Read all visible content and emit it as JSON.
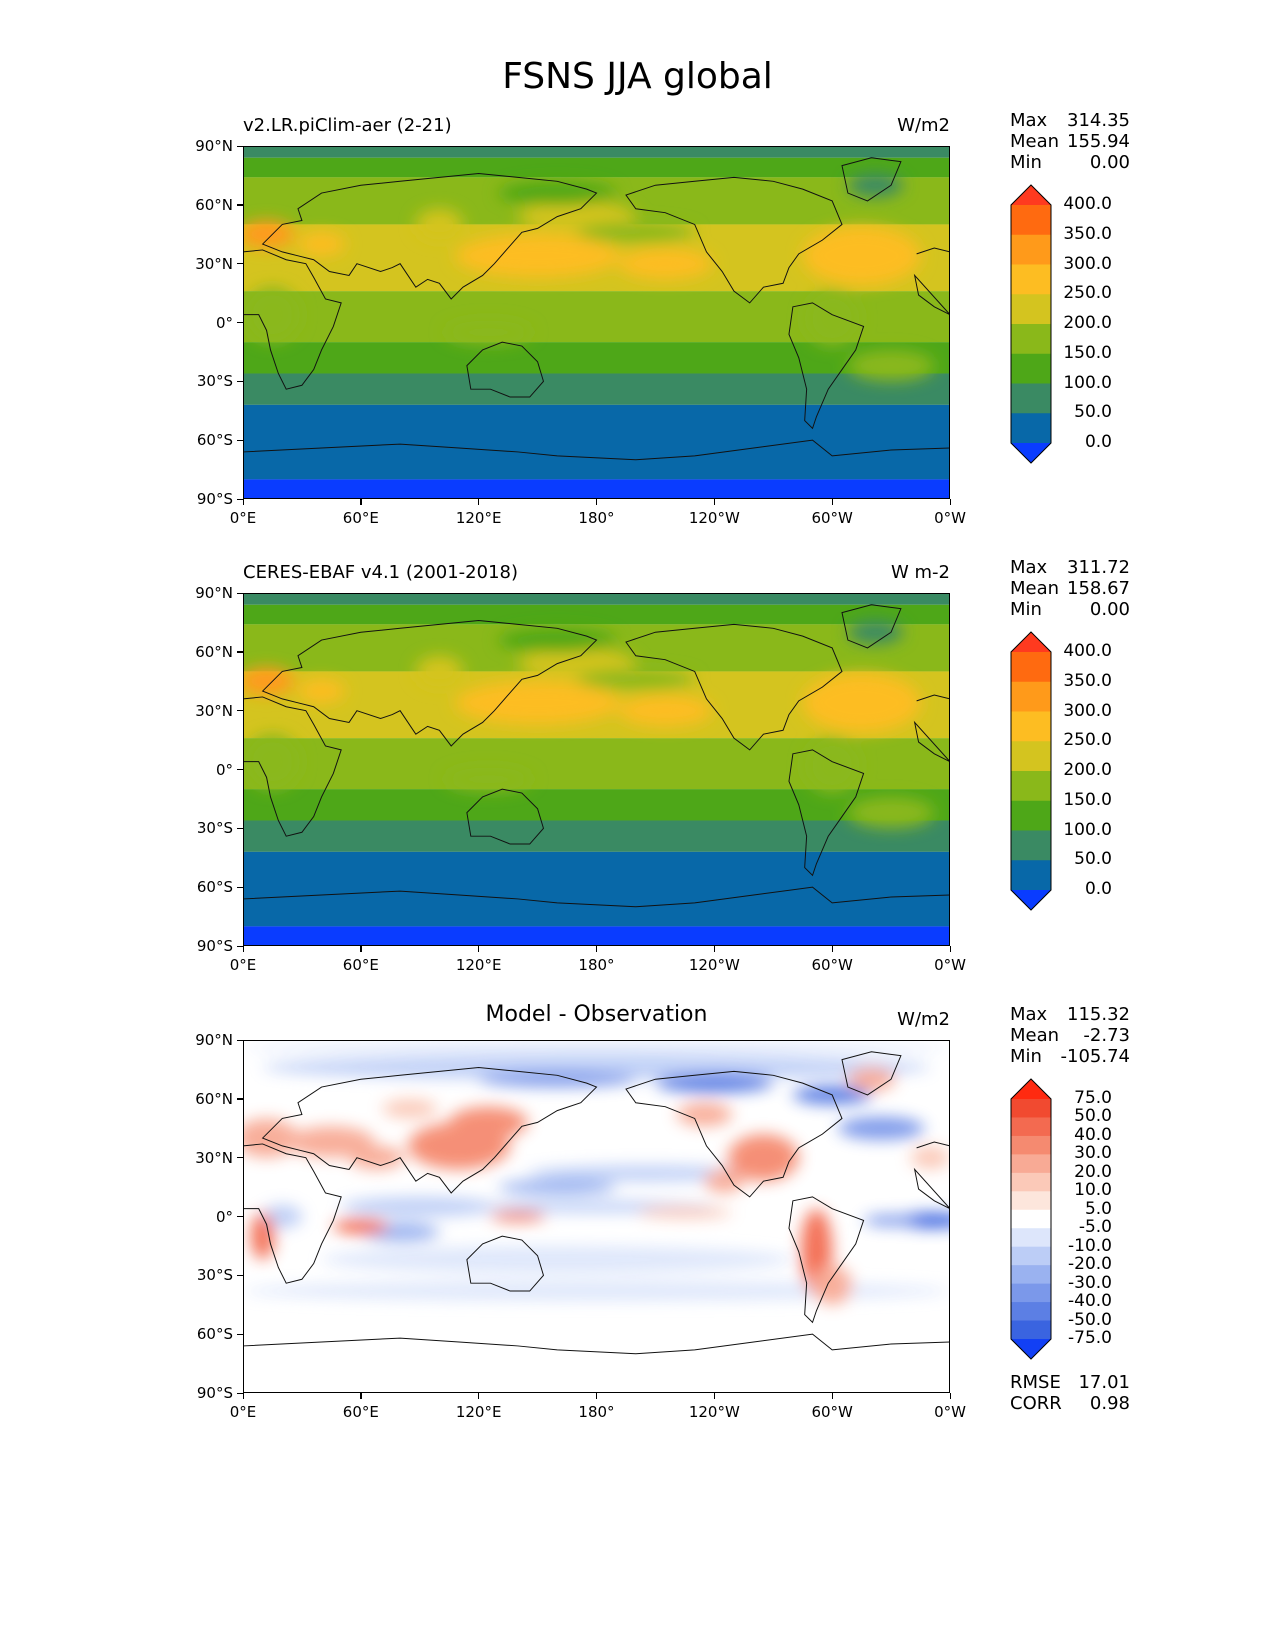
{
  "figure": {
    "title": "FSNS JJA global"
  },
  "axes": {
    "lat_ticks": [
      "90°N",
      "60°N",
      "30°N",
      "0°",
      "30°S",
      "60°S",
      "90°S"
    ],
    "lon_ticks": [
      "0°E",
      "60°E",
      "120°E",
      "180°",
      "120°W",
      "60°W",
      "0°W"
    ]
  },
  "panels": [
    {
      "id": "model",
      "subtitle": "v2.LR.piClim-aer (2-21)",
      "units": "W/m2",
      "stats": {
        "Max": "314.35",
        "Mean": "155.94",
        "Min": "0.00"
      },
      "colorbar": {
        "labels": [
          "400.0",
          "350.0",
          "300.0",
          "250.0",
          "200.0",
          "150.0",
          "100.0",
          "50.0",
          "0.0"
        ],
        "colors": [
          "#ff3a1f",
          "#ff6a10",
          "#ff9a1a",
          "#fdbd22",
          "#d4c41f",
          "#8ab81a",
          "#4ea718",
          "#3a8a63",
          "#0868a8",
          "#0a3cff"
        ]
      }
    },
    {
      "id": "obs",
      "subtitle": "CERES-EBAF v4.1 (2001-2018)",
      "units": "W m-2",
      "stats": {
        "Max": "311.72",
        "Mean": "158.67",
        "Min": "0.00"
      },
      "colorbar": {
        "labels": [
          "400.0",
          "350.0",
          "300.0",
          "250.0",
          "200.0",
          "150.0",
          "100.0",
          "50.0",
          "0.0"
        ],
        "colors": [
          "#ff3a1f",
          "#ff6a10",
          "#ff9a1a",
          "#fdbd22",
          "#d4c41f",
          "#8ab81a",
          "#4ea718",
          "#3a8a63",
          "#0868a8",
          "#0a3cff"
        ]
      }
    },
    {
      "id": "diff",
      "subtitle": "Model - Observation",
      "units": "W/m2",
      "stats": {
        "Max": "115.32",
        "Mean": "-2.73",
        "Min": "-105.74"
      },
      "metrics": {
        "RMSE": "17.01",
        "CORR": "0.98"
      },
      "colorbar": {
        "labels": [
          "75.0",
          "50.0",
          "40.0",
          "30.0",
          "20.0",
          "10.0",
          "5.0",
          "-5.0",
          "-10.0",
          "-20.0",
          "-30.0",
          "-40.0",
          "-50.0",
          "-75.0"
        ],
        "colors": [
          "#ff2a10",
          "#f14a30",
          "#f36a50",
          "#f58a70",
          "#f8aa95",
          "#fbc9b8",
          "#fde6dc",
          "#ffffff",
          "#dde6fb",
          "#bccdf6",
          "#9ab2f0",
          "#7b98ea",
          "#5c7fe4",
          "#3a64e0",
          "#1240f5"
        ]
      }
    }
  ]
}
